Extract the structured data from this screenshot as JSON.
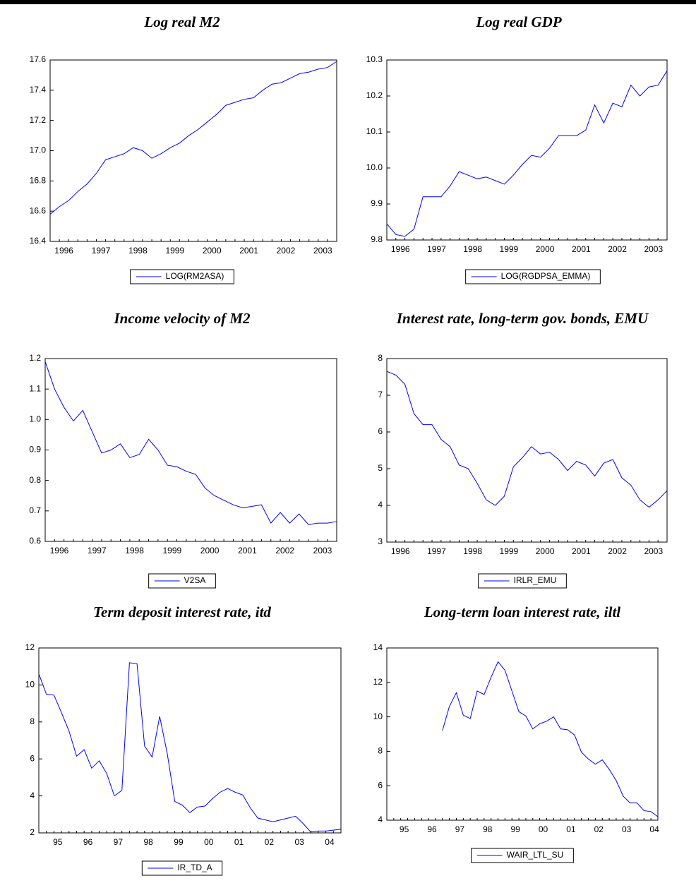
{
  "chart_data": [
    {
      "type": "line",
      "title": "Log real M2",
      "categories": [
        "1996",
        null,
        null,
        null,
        "1997",
        null,
        null,
        null,
        "1998",
        null,
        null,
        null,
        "1999",
        null,
        null,
        null,
        "2000",
        null,
        null,
        null,
        "2001",
        null,
        null,
        null,
        "2002",
        null,
        null,
        null,
        "2003",
        null,
        null,
        null
      ],
      "series": [
        {
          "name": "LOG(RM2ASA)",
          "color": "#0000ff",
          "values": [
            16.58,
            16.63,
            16.67,
            16.73,
            16.78,
            16.85,
            16.94,
            16.96,
            16.98,
            17.02,
            17.0,
            16.95,
            16.98,
            17.02,
            17.05,
            17.1,
            17.14,
            17.19,
            17.24,
            17.3,
            17.32,
            17.34,
            17.35,
            17.4,
            17.44,
            17.45,
            17.48,
            17.51,
            17.52,
            17.54,
            17.55,
            17.59
          ]
        }
      ],
      "ylim": [
        16.4,
        17.6
      ],
      "yticks": [
        16.4,
        16.6,
        16.8,
        {
          "value": 17,
          "label": "17.0"
        },
        17.2,
        17.4,
        17.6
      ]
    },
    {
      "type": "line",
      "title": "Log real GDP",
      "categories": [
        "1996",
        null,
        null,
        null,
        "1997",
        null,
        null,
        null,
        "1998",
        null,
        null,
        null,
        "1999",
        null,
        null,
        null,
        "2000",
        null,
        null,
        null,
        "2001",
        null,
        null,
        null,
        "2002",
        null,
        null,
        null,
        "2003",
        null,
        null,
        null
      ],
      "series": [
        {
          "name": "LOG(RGDPSA_EMMA)",
          "color": "#0000ff",
          "values": [
            9.845,
            9.815,
            9.81,
            9.83,
            9.92,
            9.92,
            9.92,
            9.95,
            9.99,
            9.98,
            9.97,
            9.975,
            9.965,
            9.955,
            9.98,
            10.01,
            10.035,
            10.03,
            10.055,
            10.09,
            10.09,
            10.09,
            10.105,
            10.175,
            10.125,
            10.18,
            10.17,
            10.23,
            10.2,
            10.225,
            10.23,
            10.27
          ]
        }
      ],
      "ylim": [
        9.8,
        10.3
      ],
      "yticks": [
        9.8,
        9.9,
        {
          "value": 10,
          "label": "10.0"
        },
        10.1,
        10.2,
        10.3
      ]
    },
    {
      "type": "line",
      "title": "Income velocity of M2",
      "categories": [
        "1996",
        null,
        null,
        null,
        "1997",
        null,
        null,
        null,
        "1998",
        null,
        null,
        null,
        "1999",
        null,
        null,
        null,
        "2000",
        null,
        null,
        null,
        "2001",
        null,
        null,
        null,
        "2002",
        null,
        null,
        null,
        "2003",
        null,
        null,
        null
      ],
      "series": [
        {
          "name": "V2SA",
          "color": "#0000ff",
          "values": [
            1.19,
            1.1,
            1.04,
            0.995,
            1.03,
            0.96,
            0.89,
            0.9,
            0.92,
            0.875,
            0.885,
            0.935,
            0.9,
            0.85,
            0.845,
            0.83,
            0.82,
            0.775,
            0.75,
            0.735,
            0.72,
            0.71,
            0.715,
            0.72,
            0.66,
            0.695,
            0.66,
            0.69,
            0.655,
            0.66,
            0.66,
            0.665
          ]
        }
      ],
      "ylim": [
        0.6,
        1.2
      ],
      "yticks": [
        0.6,
        0.7,
        0.8,
        0.9,
        {
          "value": 1,
          "label": "1.0"
        },
        1.1,
        1.2
      ]
    },
    {
      "type": "line",
      "title": "Interest rate, long-term gov. bonds, EMU",
      "categories": [
        "1996",
        null,
        null,
        null,
        "1997",
        null,
        null,
        null,
        "1998",
        null,
        null,
        null,
        "1999",
        null,
        null,
        null,
        "2000",
        null,
        null,
        null,
        "2001",
        null,
        null,
        null,
        "2002",
        null,
        null,
        null,
        "2003",
        null,
        null,
        null
      ],
      "series": [
        {
          "name": "IRLR_EMU",
          "color": "#0000ff",
          "values": [
            7.65,
            7.55,
            7.3,
            6.5,
            6.2,
            6.2,
            5.8,
            5.6,
            5.1,
            5.0,
            4.6,
            4.15,
            4.0,
            4.25,
            5.05,
            5.3,
            5.6,
            5.4,
            5.45,
            5.25,
            4.95,
            5.2,
            5.1,
            4.8,
            5.15,
            5.25,
            4.75,
            4.55,
            4.15,
            3.95,
            4.15,
            4.4
          ]
        }
      ],
      "ylim": [
        3,
        8
      ],
      "yticks": [
        3,
        4,
        5,
        6,
        7,
        8
      ]
    },
    {
      "type": "line",
      "title": "Term deposit interest rate, itd",
      "categories": [
        null,
        "95",
        null,
        null,
        null,
        "96",
        null,
        null,
        null,
        "97",
        null,
        null,
        null,
        "98",
        null,
        null,
        null,
        "99",
        null,
        null,
        null,
        "00",
        null,
        null,
        null,
        "01",
        null,
        null,
        null,
        "02",
        null,
        null,
        null,
        "03",
        null,
        null,
        null,
        "04",
        null,
        null,
        null
      ],
      "series": [
        {
          "name": "IR_TD_A",
          "color": "#0000ff",
          "values": [
            10.6,
            9.5,
            9.45,
            8.5,
            7.5,
            6.15,
            6.5,
            5.5,
            5.9,
            5.2,
            4.0,
            4.3,
            11.2,
            11.15,
            6.7,
            6.1,
            8.3,
            6.3,
            3.7,
            3.5,
            3.1,
            3.4,
            3.45,
            3.85,
            4.2,
            4.4,
            4.2,
            4.05,
            3.35,
            2.8,
            2.7,
            2.6,
            2.7,
            2.8,
            2.9,
            2.5,
            2.05,
            2.1,
            2.1,
            2.15,
            2.2
          ]
        }
      ],
      "ylim": [
        2,
        12
      ],
      "yticks": [
        2,
        4,
        6,
        8,
        10,
        12
      ]
    },
    {
      "type": "line",
      "title": "Long-term loan interest rate, iltl",
      "categories": [
        null,
        "95",
        null,
        null,
        null,
        "96",
        null,
        null,
        null,
        "97",
        null,
        null,
        null,
        "98",
        null,
        null,
        null,
        "99",
        null,
        null,
        null,
        "00",
        null,
        null,
        null,
        "01",
        null,
        null,
        null,
        "02",
        null,
        null,
        null,
        "03",
        null,
        null,
        null,
        "04",
        null,
        null
      ],
      "series": [
        {
          "name": "WAIR_LTL_SU",
          "color": "#0000ff",
          "values": [
            null,
            null,
            null,
            null,
            null,
            null,
            null,
            null,
            9.2,
            10.6,
            11.4,
            10.1,
            9.9,
            11.5,
            11.3,
            12.3,
            13.2,
            12.7,
            11.5,
            10.3,
            10.05,
            9.3,
            9.6,
            9.75,
            10.0,
            9.3,
            9.25,
            8.95,
            7.95,
            7.55,
            7.25,
            7.5,
            6.95,
            6.3,
            5.4,
            5.0,
            5.0,
            4.55,
            4.5,
            4.2
          ]
        }
      ],
      "ylim": [
        4,
        14
      ],
      "yticks": [
        4,
        6,
        8,
        10,
        12,
        14
      ]
    }
  ]
}
